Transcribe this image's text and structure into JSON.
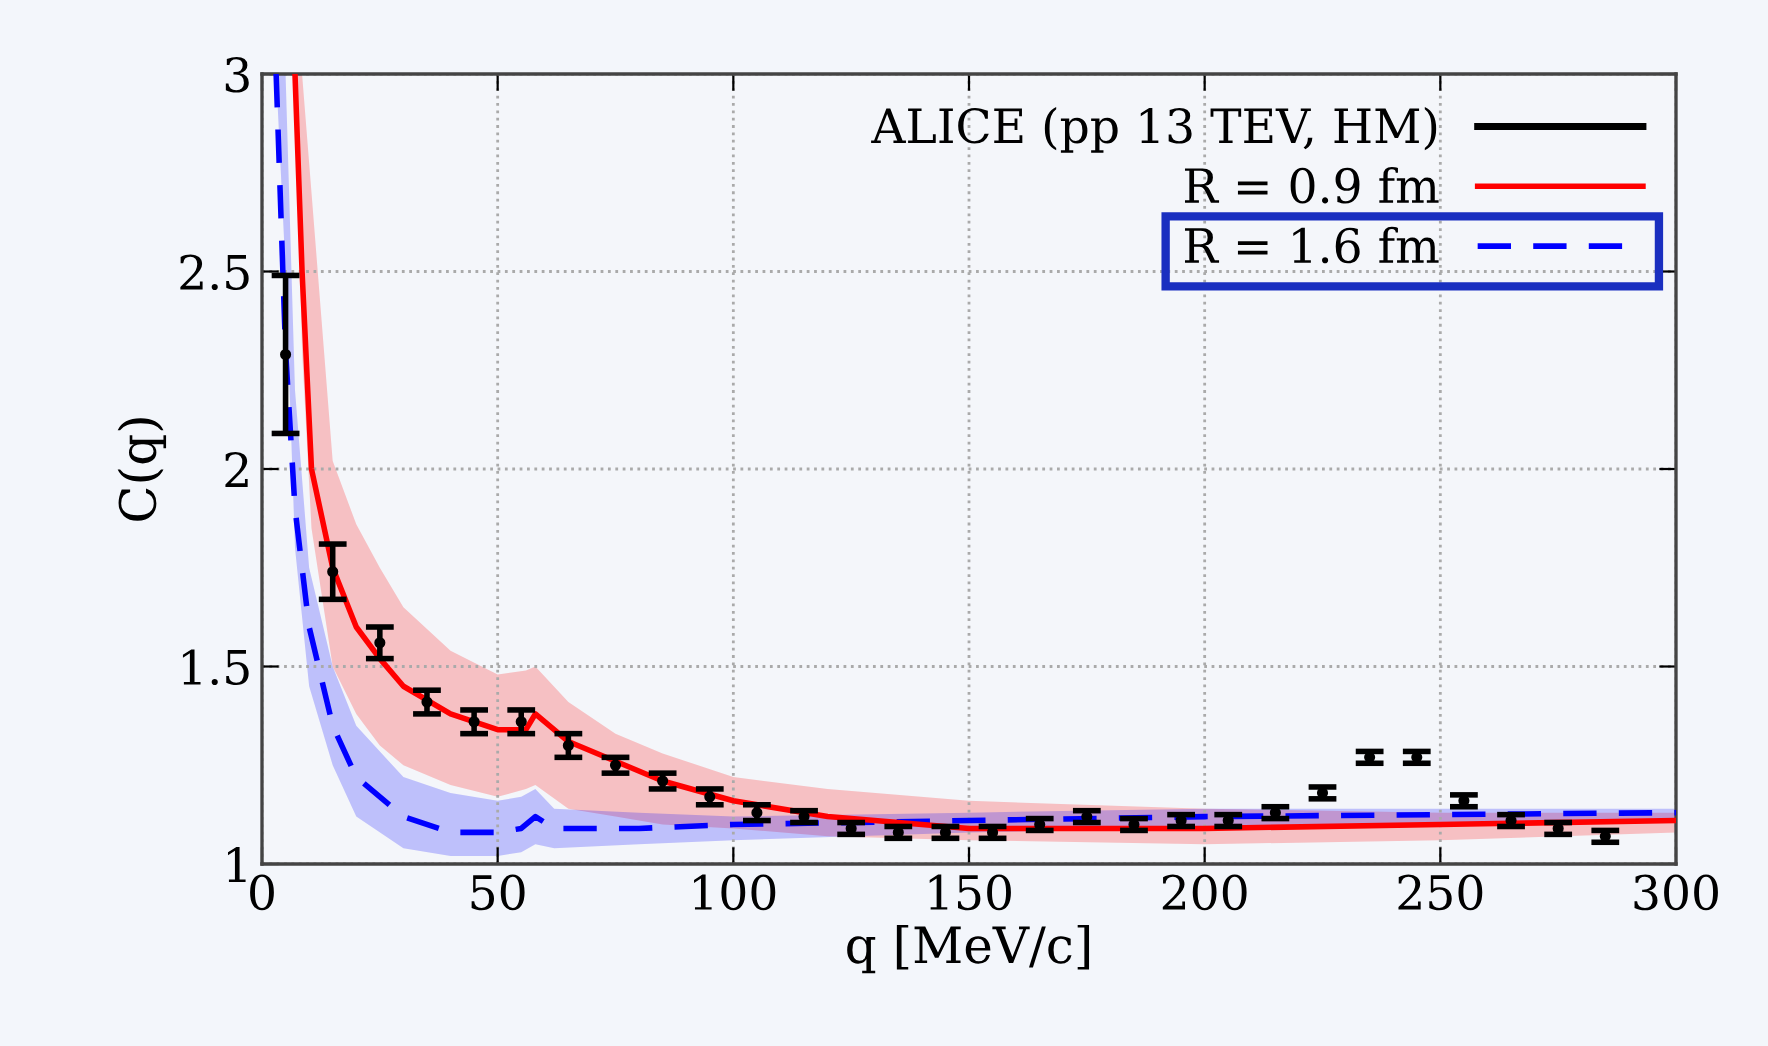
{
  "chart_data": {
    "type": "line",
    "xlabel": "q [MeV/c]",
    "ylabel": "C(q)",
    "xlim": [
      0,
      300
    ],
    "ylim": [
      1,
      3
    ],
    "xticks": [
      0,
      50,
      100,
      150,
      200,
      250,
      300
    ],
    "yticks": [
      1,
      1.5,
      2,
      2.5,
      3
    ],
    "grid": true,
    "legend": "top right",
    "series": [
      {
        "name": "ALICE (pp 13 TEV, HM)",
        "type": "scatter",
        "color": "#000000",
        "marker": "circle",
        "x": [
          5,
          15,
          25,
          35,
          45,
          55,
          65,
          75,
          85,
          95,
          105,
          115,
          125,
          135,
          145,
          155,
          165,
          175,
          185,
          195,
          205,
          215,
          225,
          235,
          245,
          255,
          265,
          275,
          285
        ],
        "values": [
          2.29,
          1.74,
          1.56,
          1.41,
          1.36,
          1.36,
          1.3,
          1.25,
          1.21,
          1.17,
          1.13,
          1.12,
          1.09,
          1.08,
          1.08,
          1.08,
          1.1,
          1.12,
          1.1,
          1.11,
          1.11,
          1.13,
          1.18,
          1.27,
          1.27,
          1.16,
          1.11,
          1.09,
          1.07
        ],
        "errors": [
          0.2,
          0.07,
          0.04,
          0.03,
          0.03,
          0.03,
          0.03,
          0.02,
          0.02,
          0.02,
          0.02,
          0.015,
          0.015,
          0.015,
          0.015,
          0.015,
          0.015,
          0.015,
          0.015,
          0.015,
          0.015,
          0.015,
          0.015,
          0.015,
          0.015,
          0.015,
          0.015,
          0.015,
          0.015
        ]
      },
      {
        "name": "R = 0.9 fm",
        "color": "#ff0000",
        "line_style": "solid",
        "x": [
          7,
          8.5,
          10.5,
          15,
          20,
          25,
          30,
          40,
          50,
          56,
          58,
          65,
          75,
          85,
          100,
          120,
          150,
          200,
          250,
          300
        ],
        "values": [
          3.0,
          2.5,
          2.0,
          1.75,
          1.6,
          1.52,
          1.45,
          1.38,
          1.34,
          1.34,
          1.38,
          1.31,
          1.26,
          1.21,
          1.16,
          1.12,
          1.09,
          1.09,
          1.1,
          1.11
        ],
        "lower": [
          3.0,
          2.3,
          1.85,
          1.5,
          1.38,
          1.3,
          1.25,
          1.2,
          1.17,
          1.19,
          1.2,
          1.14,
          1.12,
          1.1,
          1.09,
          1.07,
          1.06,
          1.05,
          1.06,
          1.08
        ],
        "upper": [
          3.0,
          3.0,
          2.7,
          2.02,
          1.86,
          1.75,
          1.65,
          1.54,
          1.48,
          1.49,
          1.5,
          1.41,
          1.33,
          1.28,
          1.22,
          1.19,
          1.16,
          1.14,
          1.13,
          1.13
        ]
      },
      {
        "name": "R = 1.6 fm",
        "color": "#0000ff",
        "line_style": "dashed",
        "x": [
          3,
          5,
          7,
          10,
          15,
          20,
          30,
          40,
          50,
          55,
          58,
          62,
          80,
          100,
          150,
          200,
          300
        ],
        "values": [
          3.0,
          2.3,
          1.9,
          1.6,
          1.35,
          1.22,
          1.12,
          1.08,
          1.08,
          1.09,
          1.12,
          1.09,
          1.09,
          1.1,
          1.11,
          1.12,
          1.13
        ],
        "lower": [
          3.0,
          2.5,
          1.8,
          1.45,
          1.25,
          1.12,
          1.04,
          1.02,
          1.02,
          1.03,
          1.05,
          1.04,
          1.05,
          1.06,
          1.08,
          1.09,
          1.11
        ],
        "upper": [
          3.0,
          3.0,
          2.2,
          1.75,
          1.5,
          1.35,
          1.22,
          1.18,
          1.16,
          1.17,
          1.19,
          1.14,
          1.13,
          1.12,
          1.13,
          1.14,
          1.14
        ]
      }
    ]
  }
}
